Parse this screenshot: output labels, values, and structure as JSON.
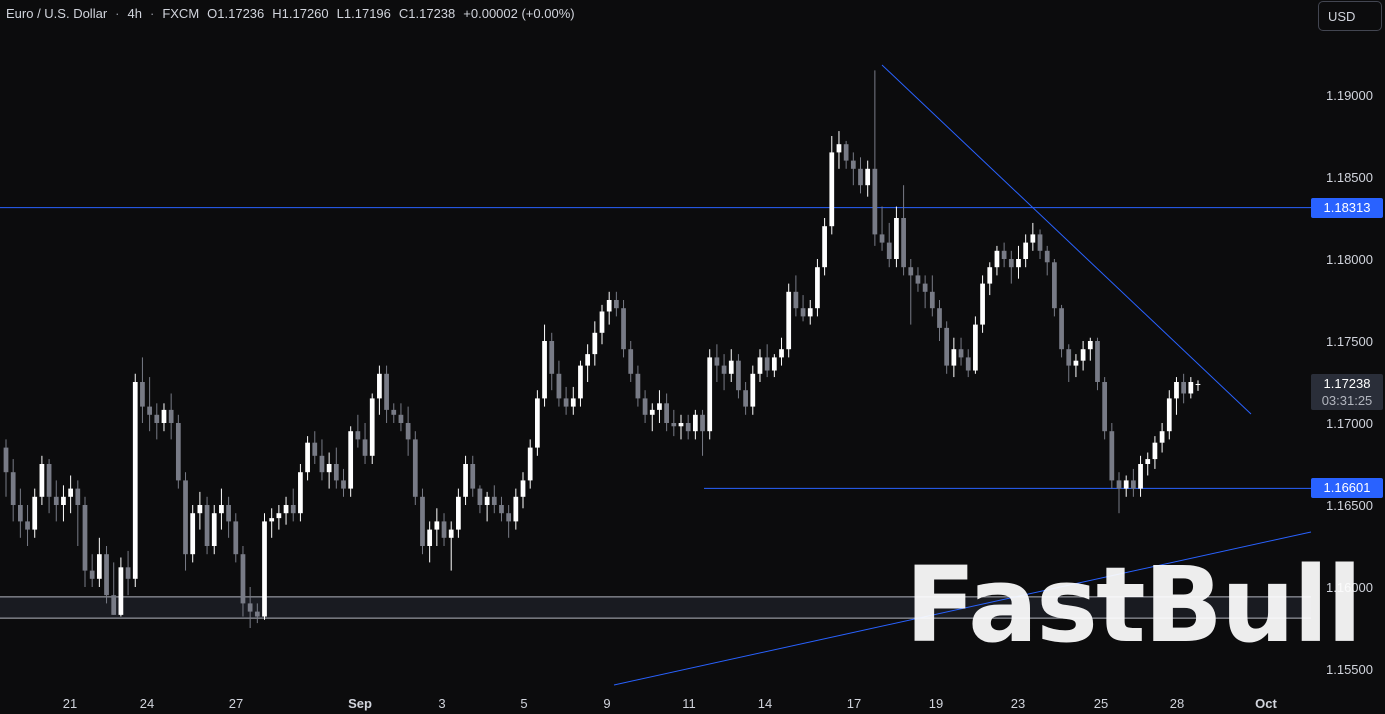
{
  "header": {
    "symbol": "Euro / U.S. Dollar",
    "sep1": "·",
    "interval": "4h",
    "sep2": "·",
    "source": "FXCM",
    "open": "O1.17236",
    "high": "H1.17260",
    "low": "L1.17196",
    "close": "C1.17238",
    "change": "+0.00002 (+0.00%)"
  },
  "currency_button": "USD",
  "watermark": "FastBull",
  "price_tags": {
    "resistance": "1.18313",
    "support": "1.16601",
    "current": "1.17238",
    "countdown": "03:31:25"
  },
  "colors": {
    "background": "#0c0c0d",
    "candle_up": "#ffffff",
    "candle_down": "#787b86",
    "trendline": "#2962ff",
    "axis_text": "#d1d4dc"
  },
  "chart_data": {
    "type": "candlestick",
    "title": "",
    "xlabel": "",
    "ylabel": "",
    "ylim": [
      1.1535,
      1.1955
    ],
    "x_ticks": [
      "21",
      "24",
      "27",
      "Sep",
      "3",
      "5",
      "9",
      "11",
      "14",
      "17",
      "19",
      "23",
      "25",
      "28",
      "Oct"
    ],
    "y_ticks": [
      "1.19000",
      "1.18500",
      "1.18000",
      "1.17500",
      "1.17000",
      "1.16500",
      "1.16000",
      "1.15500"
    ],
    "candles": [
      [
        1.1685,
        1.169,
        1.1655,
        1.167
      ],
      [
        1.167,
        1.1678,
        1.164,
        1.165
      ],
      [
        1.165,
        1.166,
        1.163,
        1.164
      ],
      [
        1.164,
        1.165,
        1.1625,
        1.1635
      ],
      [
        1.1635,
        1.166,
        1.163,
        1.1655
      ],
      [
        1.1655,
        1.168,
        1.165,
        1.1675
      ],
      [
        1.1675,
        1.1678,
        1.1645,
        1.1655
      ],
      [
        1.1655,
        1.1665,
        1.164,
        1.165
      ],
      [
        1.165,
        1.1662,
        1.164,
        1.1655
      ],
      [
        1.1655,
        1.1668,
        1.1645,
        1.166
      ],
      [
        1.166,
        1.1665,
        1.1625,
        1.165
      ],
      [
        1.165,
        1.1655,
        1.16,
        1.161
      ],
      [
        1.161,
        1.162,
        1.16,
        1.1605
      ],
      [
        1.1605,
        1.163,
        1.16,
        1.162
      ],
      [
        1.162,
        1.1625,
        1.159,
        1.1595
      ],
      [
        1.1595,
        1.1615,
        1.1583,
        1.1583
      ],
      [
        1.1583,
        1.1618,
        1.1582,
        1.1612
      ],
      [
        1.1612,
        1.1622,
        1.1595,
        1.1605
      ],
      [
        1.1605,
        1.173,
        1.16,
        1.1725
      ],
      [
        1.1725,
        1.174,
        1.17,
        1.171
      ],
      [
        1.171,
        1.1728,
        1.1695,
        1.1705
      ],
      [
        1.1705,
        1.1712,
        1.169,
        1.17
      ],
      [
        1.17,
        1.1712,
        1.1695,
        1.1708
      ],
      [
        1.1708,
        1.1718,
        1.169,
        1.17
      ],
      [
        1.17,
        1.1705,
        1.166,
        1.1665
      ],
      [
        1.1665,
        1.167,
        1.161,
        1.162
      ],
      [
        1.162,
        1.165,
        1.1615,
        1.1645
      ],
      [
        1.1645,
        1.1658,
        1.1635,
        1.165
      ],
      [
        1.165,
        1.1655,
        1.162,
        1.1625
      ],
      [
        1.1625,
        1.165,
        1.162,
        1.1645
      ],
      [
        1.1645,
        1.166,
        1.1635,
        1.165
      ],
      [
        1.165,
        1.1655,
        1.163,
        1.164
      ],
      [
        1.164,
        1.1645,
        1.1615,
        1.162
      ],
      [
        1.162,
        1.1625,
        1.1582,
        1.159
      ],
      [
        1.159,
        1.16,
        1.1575,
        1.1585
      ],
      [
        1.1585,
        1.159,
        1.1578,
        1.1582
      ],
      [
        1.1582,
        1.1645,
        1.158,
        1.164
      ],
      [
        1.164,
        1.1648,
        1.163,
        1.1642
      ],
      [
        1.1642,
        1.165,
        1.1635,
        1.1645
      ],
      [
        1.1645,
        1.1655,
        1.1638,
        1.165
      ],
      [
        1.165,
        1.166,
        1.164,
        1.1645
      ],
      [
        1.1645,
        1.1675,
        1.164,
        1.167
      ],
      [
        1.167,
        1.1692,
        1.1665,
        1.1688
      ],
      [
        1.1688,
        1.1695,
        1.1675,
        1.168
      ],
      [
        1.168,
        1.169,
        1.1665,
        1.167
      ],
      [
        1.167,
        1.1682,
        1.166,
        1.1675
      ],
      [
        1.1675,
        1.1685,
        1.166,
        1.1665
      ],
      [
        1.1665,
        1.1672,
        1.1655,
        1.166
      ],
      [
        1.166,
        1.1698,
        1.1655,
        1.1695
      ],
      [
        1.1695,
        1.1705,
        1.1685,
        1.169
      ],
      [
        1.169,
        1.17,
        1.1675,
        1.168
      ],
      [
        1.168,
        1.1718,
        1.1675,
        1.1715
      ],
      [
        1.1715,
        1.1735,
        1.1705,
        1.173
      ],
      [
        1.173,
        1.1735,
        1.17,
        1.1708
      ],
      [
        1.1708,
        1.1712,
        1.17,
        1.1705
      ],
      [
        1.1705,
        1.1712,
        1.1695,
        1.17
      ],
      [
        1.17,
        1.171,
        1.168,
        1.169
      ],
      [
        1.169,
        1.1695,
        1.165,
        1.1655
      ],
      [
        1.1655,
        1.166,
        1.162,
        1.1625
      ],
      [
        1.1625,
        1.164,
        1.1615,
        1.1635
      ],
      [
        1.1635,
        1.1648,
        1.1625,
        1.164
      ],
      [
        1.164,
        1.1645,
        1.1625,
        1.163
      ],
      [
        1.163,
        1.164,
        1.161,
        1.1635
      ],
      [
        1.1635,
        1.166,
        1.163,
        1.1655
      ],
      [
        1.1655,
        1.168,
        1.165,
        1.1675
      ],
      [
        1.1675,
        1.168,
        1.1655,
        1.166
      ],
      [
        1.166,
        1.1662,
        1.1645,
        1.165
      ],
      [
        1.165,
        1.1658,
        1.164,
        1.1655
      ],
      [
        1.1655,
        1.1662,
        1.1645,
        1.165
      ],
      [
        1.165,
        1.1655,
        1.164,
        1.1645
      ],
      [
        1.1645,
        1.165,
        1.163,
        1.164
      ],
      [
        1.164,
        1.166,
        1.1635,
        1.1655
      ],
      [
        1.1655,
        1.167,
        1.1648,
        1.1665
      ],
      [
        1.1665,
        1.169,
        1.166,
        1.1685
      ],
      [
        1.1685,
        1.172,
        1.168,
        1.1715
      ],
      [
        1.1715,
        1.176,
        1.171,
        1.175
      ],
      [
        1.175,
        1.1755,
        1.172,
        1.173
      ],
      [
        1.173,
        1.1738,
        1.171,
        1.1715
      ],
      [
        1.1715,
        1.1722,
        1.1705,
        1.171
      ],
      [
        1.171,
        1.1722,
        1.1705,
        1.1715
      ],
      [
        1.1715,
        1.1738,
        1.171,
        1.1735
      ],
      [
        1.1735,
        1.1748,
        1.1725,
        1.1742
      ],
      [
        1.1742,
        1.1762,
        1.1735,
        1.1755
      ],
      [
        1.1755,
        1.1772,
        1.1748,
        1.1768
      ],
      [
        1.1768,
        1.178,
        1.176,
        1.1775
      ],
      [
        1.1775,
        1.178,
        1.1765,
        1.177
      ],
      [
        1.177,
        1.1775,
        1.174,
        1.1745
      ],
      [
        1.1745,
        1.175,
        1.1725,
        1.173
      ],
      [
        1.173,
        1.1735,
        1.171,
        1.1715
      ],
      [
        1.1715,
        1.172,
        1.17,
        1.1705
      ],
      [
        1.1705,
        1.1712,
        1.1695,
        1.1708
      ],
      [
        1.1708,
        1.172,
        1.17,
        1.1712
      ],
      [
        1.1712,
        1.1718,
        1.1695,
        1.17
      ],
      [
        1.17,
        1.1708,
        1.1692,
        1.1698
      ],
      [
        1.1698,
        1.1705,
        1.169,
        1.17
      ],
      [
        1.17,
        1.1705,
        1.169,
        1.1695
      ],
      [
        1.1695,
        1.1708,
        1.169,
        1.1705
      ],
      [
        1.1705,
        1.1708,
        1.168,
        1.1695
      ],
      [
        1.1695,
        1.1745,
        1.169,
        1.174
      ],
      [
        1.174,
        1.1748,
        1.1725,
        1.1735
      ],
      [
        1.1735,
        1.1742,
        1.172,
        1.173
      ],
      [
        1.173,
        1.1745,
        1.1725,
        1.1738
      ],
      [
        1.1738,
        1.1742,
        1.1715,
        1.172
      ],
      [
        1.172,
        1.1725,
        1.1705,
        1.171
      ],
      [
        1.171,
        1.1735,
        1.1705,
        1.173
      ],
      [
        1.173,
        1.1745,
        1.1725,
        1.174
      ],
      [
        1.174,
        1.1748,
        1.1728,
        1.1732
      ],
      [
        1.1732,
        1.1742,
        1.1728,
        1.174
      ],
      [
        1.174,
        1.1752,
        1.1735,
        1.1745
      ],
      [
        1.1745,
        1.1785,
        1.174,
        1.178
      ],
      [
        1.178,
        1.179,
        1.1765,
        1.177
      ],
      [
        1.177,
        1.1778,
        1.1762,
        1.1765
      ],
      [
        1.1765,
        1.1775,
        1.176,
        1.177
      ],
      [
        1.177,
        1.18,
        1.1765,
        1.1795
      ],
      [
        1.1795,
        1.1825,
        1.179,
        1.182
      ],
      [
        1.182,
        1.1875,
        1.1815,
        1.1865
      ],
      [
        1.1865,
        1.1878,
        1.1855,
        1.187
      ],
      [
        1.187,
        1.1872,
        1.1855,
        1.186
      ],
      [
        1.186,
        1.1865,
        1.1845,
        1.1855
      ],
      [
        1.1855,
        1.1862,
        1.184,
        1.1845
      ],
      [
        1.1845,
        1.186,
        1.1838,
        1.1855
      ],
      [
        1.1855,
        1.1915,
        1.1808,
        1.1815
      ],
      [
        1.1815,
        1.1832,
        1.1805,
        1.181
      ],
      [
        1.181,
        1.1822,
        1.1795,
        1.18
      ],
      [
        1.18,
        1.1832,
        1.1795,
        1.1825
      ],
      [
        1.1825,
        1.1845,
        1.179,
        1.1795
      ],
      [
        1.1795,
        1.18,
        1.176,
        1.179
      ],
      [
        1.179,
        1.1795,
        1.178,
        1.1785
      ],
      [
        1.1785,
        1.179,
        1.177,
        1.178
      ],
      [
        1.178,
        1.179,
        1.1765,
        1.177
      ],
      [
        1.177,
        1.1775,
        1.175,
        1.1758
      ],
      [
        1.1758,
        1.1762,
        1.173,
        1.1735
      ],
      [
        1.1735,
        1.1752,
        1.1728,
        1.1745
      ],
      [
        1.1745,
        1.1752,
        1.1735,
        1.174
      ],
      [
        1.174,
        1.1745,
        1.1728,
        1.1732
      ],
      [
        1.1732,
        1.1765,
        1.173,
        1.176
      ],
      [
        1.176,
        1.179,
        1.1755,
        1.1785
      ],
      [
        1.1785,
        1.1798,
        1.1778,
        1.1795
      ],
      [
        1.1795,
        1.1808,
        1.179,
        1.1805
      ],
      [
        1.1805,
        1.181,
        1.1795,
        1.18
      ],
      [
        1.18,
        1.1805,
        1.1785,
        1.1795
      ],
      [
        1.1795,
        1.1808,
        1.1788,
        1.18
      ],
      [
        1.18,
        1.1815,
        1.1795,
        1.181
      ],
      [
        1.181,
        1.1822,
        1.1805,
        1.1815
      ],
      [
        1.1815,
        1.1818,
        1.18,
        1.1805
      ],
      [
        1.1805,
        1.1808,
        1.179,
        1.1798
      ],
      [
        1.1798,
        1.18,
        1.1765,
        1.177
      ],
      [
        1.177,
        1.1772,
        1.174,
        1.1745
      ],
      [
        1.1745,
        1.1748,
        1.1725,
        1.1735
      ],
      [
        1.1735,
        1.1742,
        1.1728,
        1.1738
      ],
      [
        1.1738,
        1.175,
        1.1732,
        1.1745
      ],
      [
        1.1745,
        1.1752,
        1.1738,
        1.175
      ],
      [
        1.175,
        1.1752,
        1.172,
        1.1725
      ],
      [
        1.1725,
        1.1728,
        1.169,
        1.1695
      ],
      [
        1.1695,
        1.17,
        1.166,
        1.1665
      ],
      [
        1.1665,
        1.167,
        1.1645,
        1.166
      ],
      [
        1.166,
        1.1668,
        1.1655,
        1.1665
      ],
      [
        1.1665,
        1.1672,
        1.1655,
        1.166
      ],
      [
        1.166,
        1.168,
        1.1655,
        1.1675
      ],
      [
        1.1675,
        1.1682,
        1.1668,
        1.1678
      ],
      [
        1.1678,
        1.1692,
        1.1672,
        1.1688
      ],
      [
        1.1688,
        1.17,
        1.1682,
        1.1695
      ],
      [
        1.1695,
        1.172,
        1.169,
        1.1715
      ],
      [
        1.1715,
        1.1728,
        1.1705,
        1.1725
      ],
      [
        1.1725,
        1.173,
        1.1712,
        1.1718
      ],
      [
        1.1718,
        1.1728,
        1.1715,
        1.1725
      ],
      [
        1.17236,
        1.1726,
        1.17196,
        1.17238
      ]
    ],
    "drawings": {
      "resistance_level": 1.18313,
      "support_level": 1.16601,
      "zone": [
        1.1581,
        1.1594
      ]
    }
  }
}
